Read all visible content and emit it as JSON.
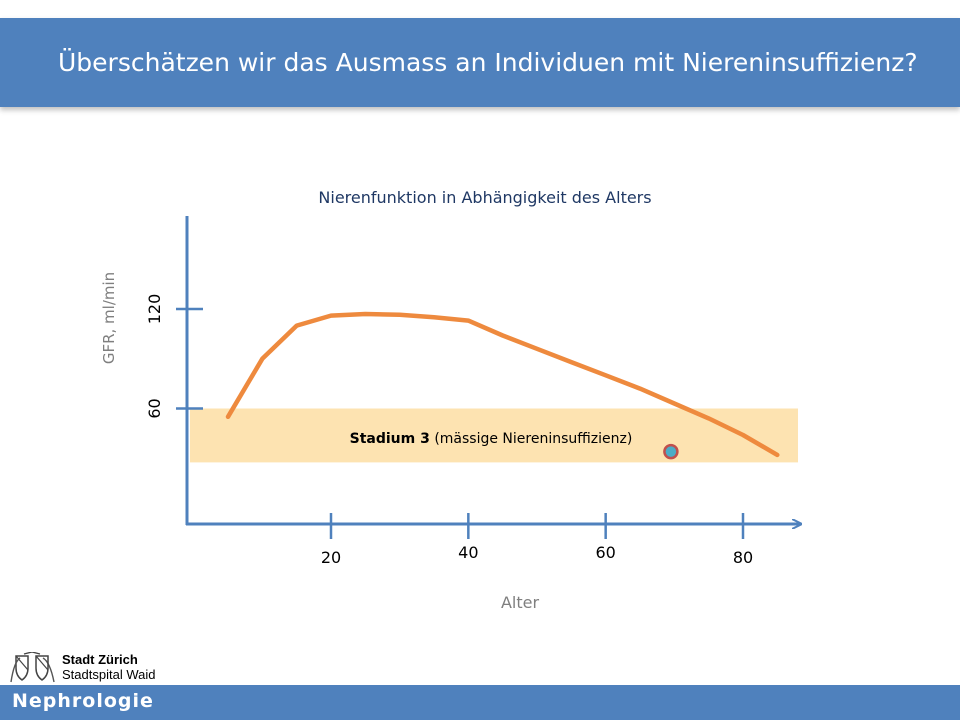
{
  "header": {
    "title": "Überschätzen wir das Ausmass an Individuen mit Niereninsuffizienz?"
  },
  "chart_data": {
    "type": "line",
    "title": "Nierenfunktion in Abhängigkeit des Alters",
    "xlabel": "Alter",
    "ylabel": "GFR, ml/min",
    "x_ticks": [
      "20",
      "40",
      "60",
      "80"
    ],
    "y_ticks": [
      "60",
      "120"
    ],
    "xlim": [
      10,
      90
    ],
    "ylim": [
      15,
      180
    ],
    "series": [
      {
        "x": [
          5,
          10,
          15,
          20,
          25,
          30,
          35,
          40,
          45,
          50,
          55,
          60,
          65,
          70,
          75,
          80,
          85
        ],
        "y": [
          55,
          90,
          110,
          116,
          117,
          116.5,
          115,
          113,
          104,
          96,
          88,
          80,
          72,
          63,
          54,
          44,
          32
        ],
        "color": "#ee8a3e"
      }
    ],
    "band": {
      "label_bold": "Stadium 3",
      "label_rest": "(mässige Niereninsuffizienz)",
      "y_min": 27.5,
      "y_max": 60,
      "color": "#fde3b1"
    },
    "marker": {
      "x": 69.5,
      "y": 34,
      "fill": "#4bacc6",
      "stroke": "#c0504d"
    }
  },
  "footer": {
    "label": "Nephrologie"
  },
  "logo": {
    "name": "Stadt Zürich",
    "subtitle": "Stadtspital Waid"
  }
}
